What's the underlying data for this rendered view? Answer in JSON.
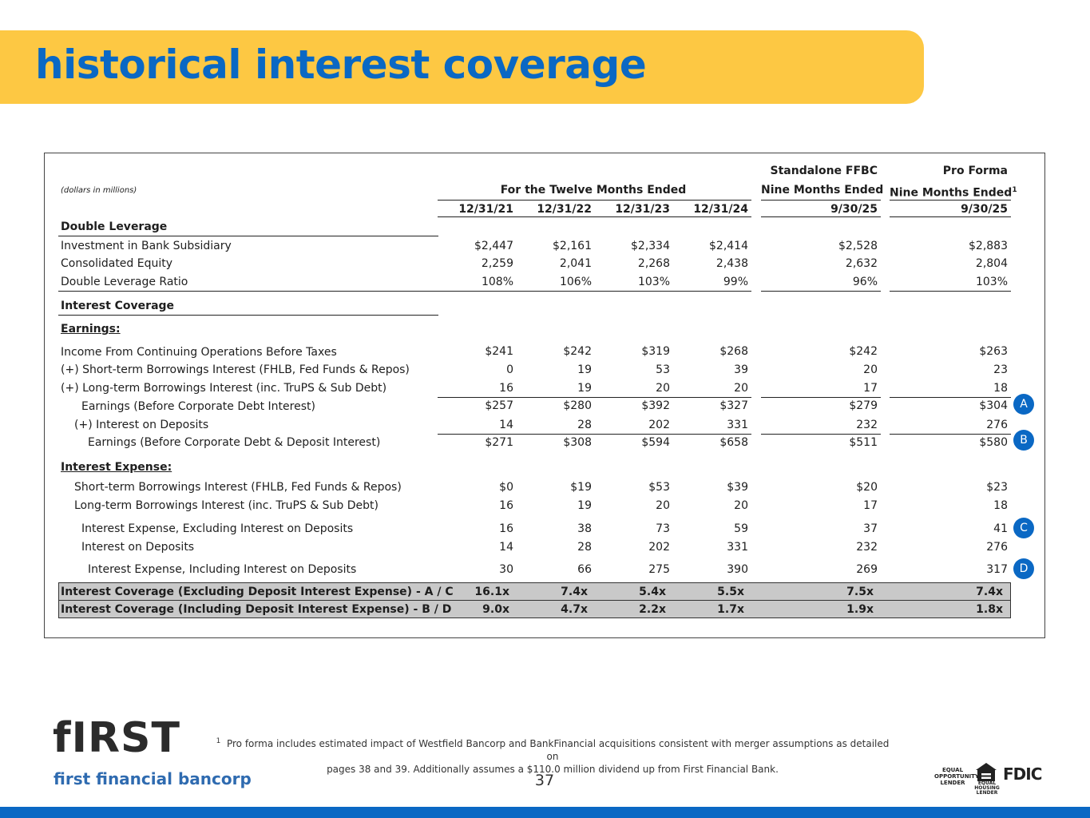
{
  "title": "historical interest coverage",
  "header": {
    "units": "(dollars in millions)",
    "twelve_months": "For the Twelve Months Ended",
    "standalone_line1": "Standalone FFBC",
    "standalone_line2": "Nine Months Ended",
    "proforma_line1": "Pro Forma",
    "proforma_line2": "Nine Months Ended",
    "proforma_sup": "1",
    "periods": [
      "12/31/21",
      "12/31/22",
      "12/31/23",
      "12/31/24",
      "9/30/25",
      "9/30/25"
    ]
  },
  "sections": {
    "double_leverage": "Double Leverage",
    "interest_coverage": "Interest Coverage",
    "earnings": "Earnings:",
    "interest_expense": "Interest Expense:"
  },
  "rows": [
    {
      "label": "Investment in Bank Subsidiary",
      "values": [
        "$2,447",
        "$2,161",
        "$2,334",
        "$2,414",
        "$2,528",
        "$2,883"
      ]
    },
    {
      "label": "Consolidated Equity",
      "values": [
        "2,259",
        "2,041",
        "2,268",
        "2,438",
        "2,632",
        "2,804"
      ]
    },
    {
      "label": "Double Leverage Ratio",
      "values": [
        "108%",
        "106%",
        "103%",
        "99%",
        "96%",
        "103%"
      ]
    },
    {
      "label": "Income From Continuing Operations Before Taxes",
      "values": [
        "$241",
        "$242",
        "$319",
        "$268",
        "$242",
        "$263"
      ]
    },
    {
      "label": "(+) Short-term Borrowings Interest (FHLB, Fed Funds & Repos)",
      "values": [
        "0",
        "19",
        "53",
        "39",
        "20",
        "23"
      ]
    },
    {
      "label": "(+) Long-term Borrowings Interest (inc. TruPS & Sub Debt)",
      "values": [
        "16",
        "19",
        "20",
        "20",
        "17",
        "18"
      ]
    },
    {
      "label": "Earnings (Before Corporate Debt Interest)",
      "values": [
        "$257",
        "$280",
        "$392",
        "$327",
        "$279",
        "$304"
      ],
      "marker": "A"
    },
    {
      "label": "(+) Interest on Deposits",
      "values": [
        "14",
        "28",
        "202",
        "331",
        "232",
        "276"
      ]
    },
    {
      "label": "Earnings (Before Corporate Debt & Deposit Interest)",
      "values": [
        "$271",
        "$308",
        "$594",
        "$658",
        "$511",
        "$580"
      ],
      "marker": "B"
    },
    {
      "label": "Short-term Borrowings Interest (FHLB, Fed Funds & Repos)",
      "values": [
        "$0",
        "$19",
        "$53",
        "$39",
        "$20",
        "$23"
      ]
    },
    {
      "label": "Long-term Borrowings Interest (inc. TruPS & Sub Debt)",
      "values": [
        "16",
        "19",
        "20",
        "20",
        "17",
        "18"
      ]
    },
    {
      "label": "Interest Expense, Excluding Interest on Deposits",
      "values": [
        "16",
        "38",
        "73",
        "59",
        "37",
        "41"
      ],
      "marker": "C"
    },
    {
      "label": "Interest on Deposits",
      "values": [
        "14",
        "28",
        "202",
        "331",
        "232",
        "276"
      ]
    },
    {
      "label": "Interest Expense, Including Interest on Deposits",
      "values": [
        "30",
        "66",
        "275",
        "390",
        "269",
        "317"
      ],
      "marker": "D"
    },
    {
      "label": "Interest Coverage (Excluding Deposit Interest Expense) - A / C",
      "values": [
        "16.1x",
        "7.4x",
        "5.4x",
        "5.5x",
        "7.5x",
        "7.4x"
      ]
    },
    {
      "label": "Interest Coverage (Including Deposit Interest Expense) - B / D",
      "values": [
        "9.0x",
        "4.7x",
        "2.2x",
        "1.7x",
        "1.9x",
        "1.8x"
      ]
    }
  ],
  "footer": {
    "logo_word": "fIRST",
    "logo_sub": "first financial bancorp",
    "footnote_mark": "1",
    "footnote_line1": "Pro forma includes estimated impact of Westfield Bancorp and BankFinancial acquisitions consistent with merger assumptions as detailed on",
    "footnote_line2": "pages 38 and 39. Additionally assumes a $110.0 million dividend up from First Financial Bank.",
    "page_number": "37",
    "equal_opportunity": "EQUAL OPPORTUNITY LENDER",
    "equal_housing": "EQUAL HOUSING LENDER",
    "fdic": "FDIC"
  },
  "colors": {
    "accent_yellow": "#fdc843",
    "brand_blue": "#0a68c4",
    "highlight_gray": "#c9c9c9"
  }
}
